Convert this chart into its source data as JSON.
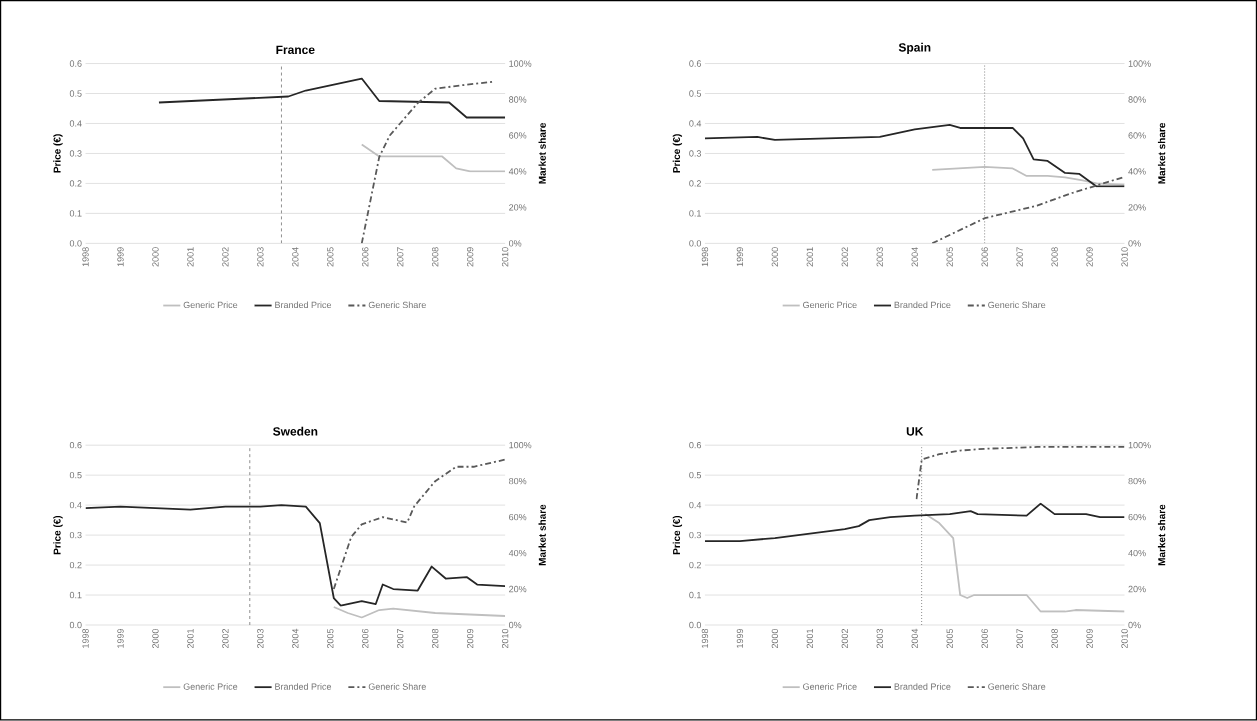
{
  "chart_data": [
    {
      "type": "line",
      "title": "France",
      "ylabel": "Price (€)",
      "y2label": "Market share",
      "xlim": [
        1998,
        2010
      ],
      "xticks": [
        1998,
        1999,
        2000,
        2001,
        2002,
        2003,
        2004,
        2005,
        2006,
        2007,
        2008,
        2009,
        2010
      ],
      "ylim": [
        0,
        0.6
      ],
      "yticks": [
        {
          "value": 0,
          "label": "0.0"
        },
        {
          "value": 0.1,
          "label": "0.1"
        },
        {
          "value": 0.2,
          "label": "0.2"
        },
        {
          "value": 0.3,
          "label": "0.3"
        },
        {
          "value": 0.4,
          "label": "0.4"
        },
        {
          "value": 0.5,
          "label": "0.5"
        },
        {
          "value": 0.6,
          "label": "0.6"
        }
      ],
      "y2lim": [
        0,
        100
      ],
      "y2ticks": [
        {
          "value": 0,
          "label": "0%"
        },
        {
          "value": 20,
          "label": "20%"
        },
        {
          "value": 40,
          "label": "40%"
        },
        {
          "value": 60,
          "label": "60%"
        },
        {
          "value": 80,
          "label": "80%"
        },
        {
          "value": 100,
          "label": "100%"
        }
      ],
      "grid": "y",
      "legend": "bottom",
      "ref_lines": [
        {
          "axis": "x",
          "value": 2003.6,
          "line_style": "dashed",
          "color": "#7f7f7f"
        }
      ],
      "series": [
        {
          "name": "Generic Price",
          "color": "#bfbfbf",
          "line_style": "solid",
          "x": [
            2005.9,
            2006.4,
            2008.2,
            2008.6,
            2009.0,
            2010
          ],
          "values": [
            0.33,
            0.29,
            0.29,
            0.25,
            0.24,
            0.24
          ]
        },
        {
          "name": "Branded Price",
          "color": "#262626",
          "line_style": "solid",
          "x": [
            2000.1,
            2003.8,
            2004.3,
            2005.9,
            2006.4,
            2008.4,
            2008.9,
            2010
          ],
          "values": [
            0.47,
            0.49,
            0.51,
            0.55,
            0.475,
            0.47,
            0.42,
            0.42
          ]
        },
        {
          "name": "Generic Share",
          "color": "#595959",
          "line_style": "dashed",
          "axis": "y2",
          "x": [
            2005.9,
            2006.4,
            2006.7,
            2007.5,
            2008.0,
            2008.8,
            2009.7
          ],
          "values": [
            0,
            48,
            60,
            78,
            86,
            88,
            90
          ]
        }
      ]
    },
    {
      "type": "line",
      "title": "Spain",
      "ylabel": "Price (€)",
      "y2label": "Market share",
      "xlim": [
        1998,
        2010
      ],
      "xticks": [
        1998,
        1999,
        2000,
        2001,
        2002,
        2003,
        2004,
        2005,
        2006,
        2007,
        2008,
        2009,
        2010
      ],
      "ylim": [
        0,
        0.6
      ],
      "yticks": [
        {
          "value": 0,
          "label": "0.0"
        },
        {
          "value": 0.1,
          "label": "0.1"
        },
        {
          "value": 0.2,
          "label": "0.2"
        },
        {
          "value": 0.3,
          "label": "0.3"
        },
        {
          "value": 0.4,
          "label": "0.4"
        },
        {
          "value": 0.5,
          "label": "0.5"
        },
        {
          "value": 0.6,
          "label": "0.6"
        }
      ],
      "y2lim": [
        0,
        100
      ],
      "y2ticks": [
        {
          "value": 0,
          "label": "0%"
        },
        {
          "value": 20,
          "label": "20%"
        },
        {
          "value": 40,
          "label": "40%"
        },
        {
          "value": 60,
          "label": "60%"
        },
        {
          "value": 80,
          "label": "80%"
        },
        {
          "value": 100,
          "label": "100%"
        }
      ],
      "grid": "y",
      "legend": "bottom",
      "ref_lines": [
        {
          "axis": "x",
          "value": 2006,
          "line_style": "dotted",
          "color": "#7f7f7f"
        }
      ],
      "series": [
        {
          "name": "Generic Price",
          "color": "#bfbfbf",
          "line_style": "solid",
          "x": [
            2004.5,
            2006,
            2006.8,
            2007.2,
            2007.8,
            2008.3,
            2008.8,
            2009.2,
            2010
          ],
          "values": [
            0.245,
            0.255,
            0.25,
            0.225,
            0.225,
            0.22,
            0.21,
            0.2,
            0.195
          ]
        },
        {
          "name": "Branded Price",
          "color": "#262626",
          "line_style": "solid",
          "x": [
            1998,
            1999.5,
            2000,
            2003,
            2004,
            2005,
            2005.3,
            2006,
            2006.8,
            2007.1,
            2007.4,
            2007.8,
            2008.3,
            2008.7,
            2009.2,
            2010
          ],
          "values": [
            0.35,
            0.355,
            0.345,
            0.355,
            0.38,
            0.395,
            0.385,
            0.385,
            0.385,
            0.35,
            0.28,
            0.275,
            0.235,
            0.232,
            0.19,
            0.19
          ]
        },
        {
          "name": "Generic Share",
          "color": "#595959",
          "line_style": "dashed",
          "axis": "y2",
          "x": [
            2004.5,
            2006,
            2007.5,
            2008.5,
            2010
          ],
          "values": [
            0,
            14,
            21,
            28,
            37
          ]
        }
      ]
    },
    {
      "type": "line",
      "title": "Sweden",
      "ylabel": "Price (€)",
      "y2label": "Market share",
      "xlim": [
        1998,
        2010
      ],
      "xticks": [
        1998,
        1999,
        2000,
        2001,
        2002,
        2003,
        2004,
        2005,
        2006,
        2007,
        2008,
        2009,
        2010
      ],
      "ylim": [
        0,
        0.6
      ],
      "yticks": [
        {
          "value": 0,
          "label": "0.0"
        },
        {
          "value": 0.1,
          "label": "0.1"
        },
        {
          "value": 0.2,
          "label": "0.2"
        },
        {
          "value": 0.3,
          "label": "0.3"
        },
        {
          "value": 0.4,
          "label": "0.4"
        },
        {
          "value": 0.5,
          "label": "0.5"
        },
        {
          "value": 0.6,
          "label": "0.6"
        }
      ],
      "y2lim": [
        0,
        100
      ],
      "y2ticks": [
        {
          "value": 0,
          "label": "0%"
        },
        {
          "value": 20,
          "label": "20%"
        },
        {
          "value": 40,
          "label": "40%"
        },
        {
          "value": 60,
          "label": "60%"
        },
        {
          "value": 80,
          "label": "80%"
        },
        {
          "value": 100,
          "label": "100%"
        }
      ],
      "grid": "y",
      "legend": "bottom",
      "ref_lines": [
        {
          "axis": "x",
          "value": 2002.7,
          "line_style": "dashed",
          "color": "#7f7f7f"
        }
      ],
      "series": [
        {
          "name": "Generic Price",
          "color": "#bfbfbf",
          "line_style": "solid",
          "x": [
            2005.1,
            2005.5,
            2005.9,
            2006.4,
            2006.8,
            2008,
            2010
          ],
          "values": [
            0.06,
            0.04,
            0.025,
            0.05,
            0.055,
            0.04,
            0.03
          ]
        },
        {
          "name": "Branded Price",
          "color": "#262626",
          "line_style": "solid",
          "x": [
            1998,
            1999,
            2000,
            2001,
            2002,
            2003,
            2003.6,
            2004.3,
            2004.7,
            2005.1,
            2005.3,
            2005.9,
            2006.3,
            2006.5,
            2006.8,
            2007.5,
            2007.9,
            2008.3,
            2008.9,
            2009.2,
            2010
          ],
          "values": [
            0.39,
            0.395,
            0.39,
            0.385,
            0.395,
            0.395,
            0.4,
            0.395,
            0.34,
            0.09,
            0.065,
            0.08,
            0.07,
            0.135,
            0.12,
            0.115,
            0.195,
            0.155,
            0.16,
            0.135,
            0.13
          ]
        },
        {
          "name": "Generic Share",
          "color": "#595959",
          "line_style": "dashed",
          "axis": "y2",
          "x": [
            2005.1,
            2005.6,
            2005.9,
            2006.5,
            2007.2,
            2007.4,
            2008.0,
            2008.6,
            2009.1,
            2010
          ],
          "values": [
            20,
            49,
            56,
            60,
            57,
            66,
            80,
            88,
            88,
            92
          ]
        }
      ]
    },
    {
      "type": "line",
      "title": "UK",
      "ylabel": "Price (€)",
      "y2label": "Market share",
      "xlim": [
        1998,
        2010
      ],
      "xticks": [
        1998,
        1999,
        2000,
        2001,
        2002,
        2003,
        2004,
        2005,
        2006,
        2007,
        2008,
        2009,
        2010
      ],
      "ylim": [
        0,
        0.6
      ],
      "yticks": [
        {
          "value": 0,
          "label": "0.0"
        },
        {
          "value": 0.1,
          "label": "0.1"
        },
        {
          "value": 0.2,
          "label": "0.2"
        },
        {
          "value": 0.3,
          "label": "0.3"
        },
        {
          "value": 0.4,
          "label": "0.4"
        },
        {
          "value": 0.5,
          "label": "0.5"
        },
        {
          "value": 0.6,
          "label": "0.6"
        }
      ],
      "y2lim": [
        0,
        100
      ],
      "y2ticks": [
        {
          "value": 0,
          "label": "0%"
        },
        {
          "value": 20,
          "label": "20%"
        },
        {
          "value": 40,
          "label": "40%"
        },
        {
          "value": 60,
          "label": "60%"
        },
        {
          "value": 80,
          "label": "80%"
        },
        {
          "value": 100,
          "label": "100%"
        }
      ],
      "grid": "y",
      "legend": "bottom",
      "ref_lines": [
        {
          "axis": "x",
          "value": 2004.2,
          "line_style": "dotted",
          "color": "#7f7f7f"
        }
      ],
      "series": [
        {
          "name": "Generic Price",
          "color": "#bfbfbf",
          "line_style": "solid",
          "x": [
            2004.3,
            2004.7,
            2005.1,
            2005.3,
            2005.5,
            2005.7,
            2007.2,
            2007.6,
            2008.3,
            2008.6,
            2010
          ],
          "values": [
            0.37,
            0.34,
            0.29,
            0.1,
            0.09,
            0.1,
            0.1,
            0.045,
            0.045,
            0.05,
            0.045
          ]
        },
        {
          "name": "Branded Price",
          "color": "#262626",
          "line_style": "solid",
          "x": [
            1998,
            1999,
            2000,
            2001,
            2002,
            2002.4,
            2002.7,
            2003.3,
            2004,
            2005,
            2005.6,
            2005.8,
            2007.2,
            2007.6,
            2008.0,
            2008.9,
            2009.3,
            2010
          ],
          "values": [
            0.28,
            0.28,
            0.29,
            0.305,
            0.32,
            0.33,
            0.35,
            0.36,
            0.365,
            0.37,
            0.38,
            0.37,
            0.365,
            0.405,
            0.37,
            0.37,
            0.36,
            0.36
          ]
        },
        {
          "name": "Generic Share",
          "color": "#595959",
          "line_style": "dashed",
          "axis": "y2",
          "x": [
            2004.05,
            2004.2,
            2004.7,
            2005.3,
            2006,
            2007.5,
            2008.5,
            2010
          ],
          "values": [
            70,
            92,
            95,
            97,
            98,
            99,
            99,
            99
          ]
        }
      ]
    }
  ]
}
